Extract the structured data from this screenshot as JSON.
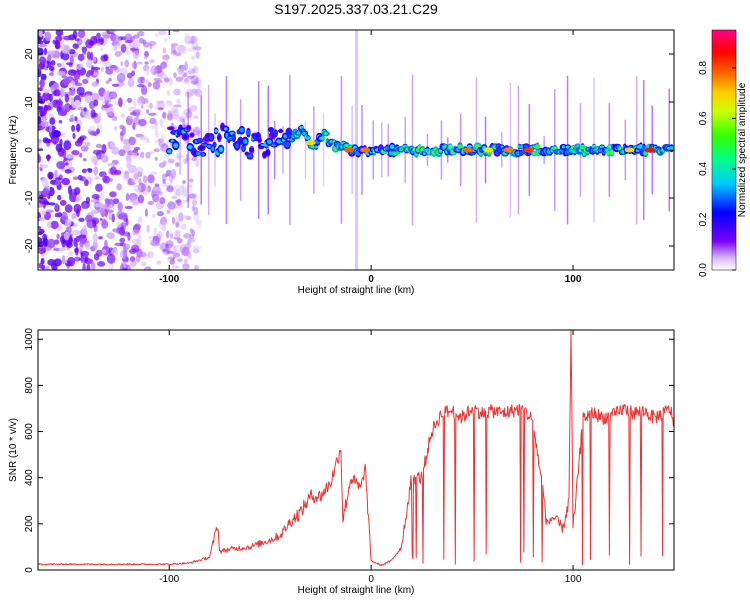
{
  "title": "S197.2025.337.03.21.C29",
  "chart_data": [
    {
      "type": "heatmap",
      "name": "spectrogram",
      "xlabel": "Height of straight line (km)",
      "ylabel": "Frequency (Hz)",
      "xlim": [
        -165,
        150
      ],
      "ylim": [
        -25,
        25
      ],
      "xticks": [
        -100,
        0,
        100
      ],
      "yticks": [
        20,
        10,
        0,
        -10,
        -20
      ],
      "colorbar": {
        "label": "Normalized spectral amplitude",
        "range": [
          0.0,
          0.95
        ],
        "ticks": [
          0.0,
          0.2,
          0.4,
          0.6,
          0.8
        ]
      },
      "features": {
        "noise_region_km": [
          -165,
          -90
        ],
        "ridge_start_km": -100,
        "ridge_frequency_hz": 0,
        "peak_amplitude": 0.9
      }
    },
    {
      "type": "line",
      "name": "snr",
      "xlabel": "Height of straight line (km)",
      "ylabel": "SNR (10 * v/v)",
      "xlim": [
        -165,
        150
      ],
      "ylim": [
        0,
        1040
      ],
      "xticks": [
        -100,
        0,
        100
      ],
      "yticks": [
        0,
        200,
        400,
        600,
        800,
        1000
      ],
      "color": "#ee3333",
      "series": [
        {
          "name": "SNR",
          "x": [
            -165,
            -150,
            -130,
            -110,
            -100,
            -90,
            -80,
            -76,
            -75,
            -70,
            -60,
            -50,
            -45,
            -40,
            -35,
            -30,
            -25,
            -20,
            -15,
            -14,
            -10,
            -5,
            -3,
            0,
            5,
            10,
            15,
            20,
            25,
            30,
            35,
            40,
            45,
            50,
            55,
            60,
            65,
            70,
            75,
            80,
            85,
            87,
            90,
            95,
            98,
            99,
            100,
            105,
            110,
            115,
            120,
            125,
            130,
            135,
            140,
            145,
            148,
            150
          ],
          "y": [
            25,
            25,
            25,
            25,
            25,
            30,
            55,
            200,
            80,
            90,
            100,
            130,
            150,
            210,
            250,
            320,
            320,
            380,
            530,
            220,
            400,
            350,
            450,
            40,
            20,
            40,
            100,
            400,
            400,
            600,
            680,
            690,
            660,
            700,
            680,
            690,
            680,
            690,
            700,
            650,
            350,
            200,
            230,
            180,
            300,
            1040,
            180,
            660,
            680,
            660,
            670,
            700,
            680,
            690,
            660,
            680,
            700,
            640
          ]
        }
      ]
    }
  ]
}
